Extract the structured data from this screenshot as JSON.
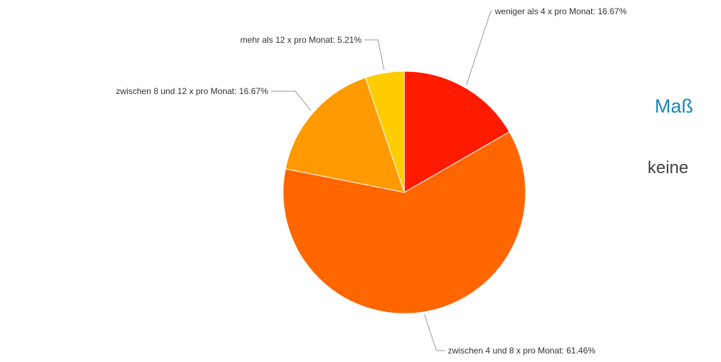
{
  "chart_data": {
    "type": "pie",
    "title": "",
    "slices": [
      {
        "label": "weniger als 4 x pro Monat: 16.67%",
        "value": 16.67,
        "color": "#ff1a00"
      },
      {
        "label": "zwischen 4 und 8 x pro Monat: 61.46%",
        "value": 61.46,
        "color": "#ff6600"
      },
      {
        "label": "zwischen 8 und 12 x pro Monat: 16.67%",
        "value": 16.67,
        "color": "#ff9900"
      },
      {
        "label": "mehr als 12 x pro Monat: 5.21%",
        "value": 5.21,
        "color": "#ffcc00"
      }
    ]
  },
  "side_panel": {
    "heading": "Maß",
    "text": "keine"
  }
}
